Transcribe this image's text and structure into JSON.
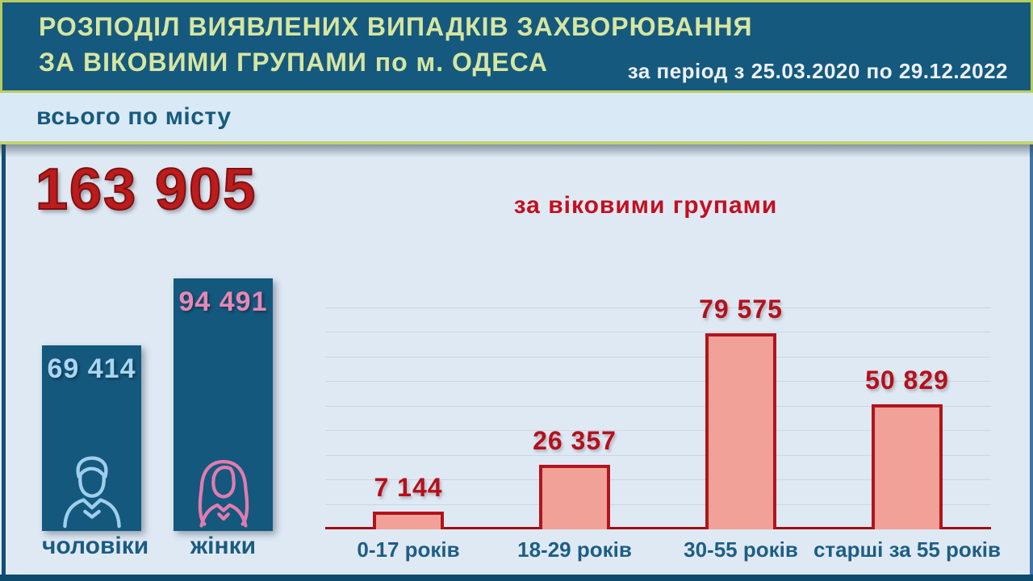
{
  "header": {
    "title_line1": "РОЗПОДІЛ ВИЯВЛЕНИХ ВИПАДКІВ ЗАХВОРЮВАННЯ",
    "title_line2": "ЗА ВІКОВИМИ ГРУПАМИ по м. ОДЕСА",
    "period": "за період з 25.03.2020 по 29.12.2022"
  },
  "total_band": {
    "label": "всього по місту"
  },
  "totals": {
    "city_total": 163905,
    "city_total_display": "163 905"
  },
  "chart_data": [
    {
      "type": "bar",
      "categories": [
        "чоловіки",
        "жінки"
      ],
      "values": [
        69414,
        94491
      ],
      "values_display": [
        "69 414",
        "94 491"
      ],
      "bar_color": "#14587d",
      "value_colors": [
        "#a9d6f2",
        "#e787b5"
      ],
      "icons": [
        "man-icon",
        "woman-icon"
      ],
      "legend": "none",
      "grid": "off"
    },
    {
      "type": "bar",
      "title": "за віковими групами",
      "categories": [
        "0-17 років",
        "18-29 років",
        "30-55 років",
        "старші за 55 років"
      ],
      "values": [
        7144,
        26357,
        79575,
        50829
      ],
      "values_display": [
        "7 144",
        "26 357",
        "79 575",
        "50 829"
      ],
      "ylim": [
        0,
        90000
      ],
      "gridline_step": 10000,
      "grid": "horizontal",
      "bar_fill": "#f1a198",
      "bar_border": "#b2141c",
      "value_label_color": "#b5101b",
      "category_label_color": "#1d5e85",
      "legend": "none"
    }
  ],
  "colors": {
    "header_bg": "#15597e",
    "header_border": "#b9cb5f",
    "title_text": "#d6e6a1",
    "period_text": "#edf1f6",
    "band_bg": "#d9e9f6",
    "band_text": "#175a7e",
    "main_bg": "#dfe9f4",
    "total_number": "#bb1c1c",
    "axis_line": "#9d1013",
    "gridline": "#cdd6de",
    "bottom_strip": "#0d4a6b"
  }
}
